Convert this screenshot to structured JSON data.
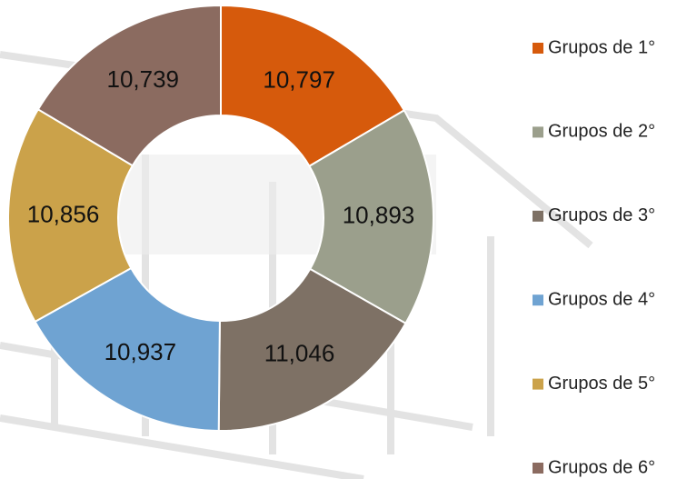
{
  "chart_data": {
    "type": "donut",
    "categories": [
      "Grupos de 1°",
      "Grupos de 2°",
      "Grupos de 3°",
      "Grupos de 4°",
      "Grupos de 5°",
      "Grupos de 6°"
    ],
    "values": [
      10797,
      10893,
      11046,
      10937,
      10856,
      10739
    ],
    "value_labels": [
      "10,797",
      "10,893",
      "11,046",
      "10,937",
      "10,856",
      "10,739"
    ],
    "colors": [
      "#d65a0c",
      "#9b9f8c",
      "#7e7165",
      "#6fa3d2",
      "#cba24a",
      "#8b6b60"
    ],
    "legend": "right"
  }
}
